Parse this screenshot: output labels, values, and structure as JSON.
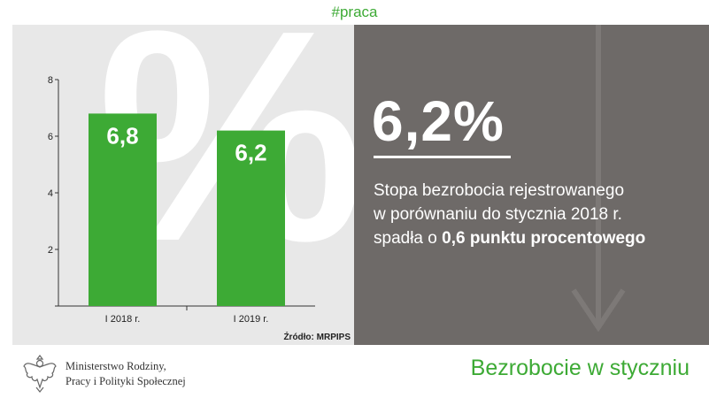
{
  "hashtag": "#praca",
  "decor": {
    "big_symbol": "%"
  },
  "chart_data": {
    "type": "bar",
    "categories": [
      "I 2018 r.",
      "I 2019 r."
    ],
    "values": [
      6.8,
      6.2
    ],
    "value_labels": [
      "6,8",
      "6,2"
    ],
    "ylim": [
      0,
      8
    ],
    "yticks": [
      2,
      4,
      6,
      8
    ],
    "bar_color": "#3daa35",
    "source": "Źródło: MRPIPS",
    "grid": false
  },
  "highlight": {
    "value": "6,2%",
    "line1": "Stopa bezrobocia rejestrowanego",
    "line2": "w porównaniu do stycznia 2018 r.",
    "line3_prefix": "spadła o ",
    "line3_bold": "0,6 punktu procentowego"
  },
  "footer": {
    "ministry_line1": "Ministerstwo Rodziny,",
    "ministry_line2": "Pracy i Polityki Społecznej",
    "title": "Bezrobocie w styczniu"
  },
  "colors": {
    "green": "#3daa35",
    "dark_panel": "#6e6a68",
    "light_panel": "#e8e8e8"
  },
  "icons": {
    "logo": "white-eagle-emblem-icon",
    "arrow": "down-arrow-icon"
  }
}
